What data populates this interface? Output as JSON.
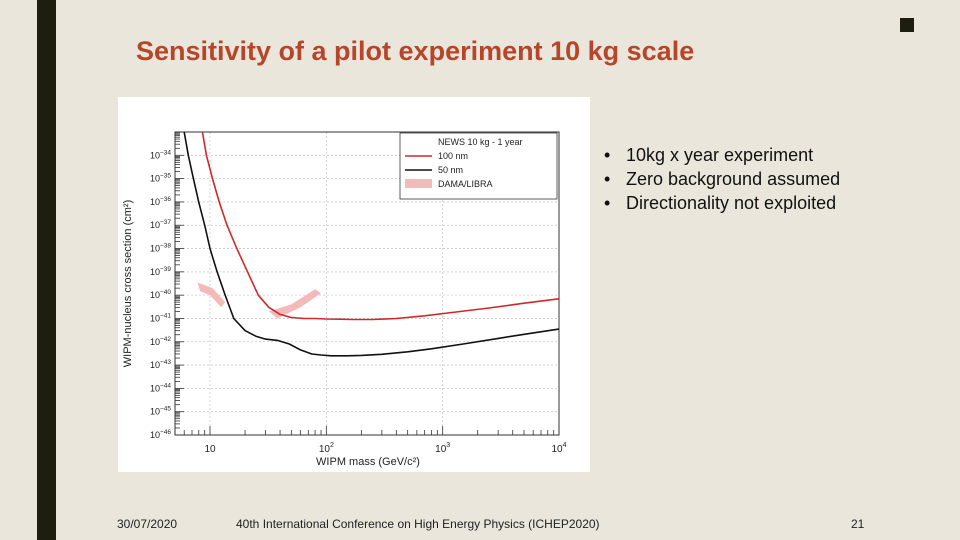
{
  "slide": {
    "title": "Sensitivity of a pilot experiment 10 kg scale",
    "bullets": [
      "10kg x year experiment",
      "Zero background assumed",
      "Directionality not exploited"
    ],
    "footer_date": "30/07/2020",
    "footer_conference": "40th International Conference on High Energy Physics (ICHEP2020)",
    "footer_page": "21",
    "accent_color": "#b5462a",
    "sidebar_color": "#1d1d10"
  },
  "chart_data": {
    "type": "line",
    "xlabel": "WIPM mass (GeV/c²)",
    "ylabel": "WIPM-nucleus cross section (cm²)",
    "x_scale": "log",
    "y_scale": "log",
    "xlim": [
      5,
      10000
    ],
    "ylim": [
      1e-46,
      1e-33
    ],
    "x_ticks": [
      {
        "value": 10,
        "base": "10",
        "exp": ""
      },
      {
        "value": 100,
        "base": "10",
        "exp": "2"
      },
      {
        "value": 1000,
        "base": "10",
        "exp": "3"
      },
      {
        "value": 10000,
        "base": "10",
        "exp": "4"
      }
    ],
    "y_ticks": [
      {
        "value": 1e-34,
        "base": "10",
        "exp": "−34"
      },
      {
        "value": 1e-35,
        "base": "10",
        "exp": "−35"
      },
      {
        "value": 1e-36,
        "base": "10",
        "exp": "−36"
      },
      {
        "value": 1e-37,
        "base": "10",
        "exp": "−37"
      },
      {
        "value": 1e-38,
        "base": "10",
        "exp": "−38"
      },
      {
        "value": 1e-39,
        "base": "10",
        "exp": "−39"
      },
      {
        "value": 1e-40,
        "base": "10",
        "exp": "−40"
      },
      {
        "value": 1e-41,
        "base": "10",
        "exp": "−41"
      },
      {
        "value": 1e-42,
        "base": "10",
        "exp": "−42"
      },
      {
        "value": 1e-43,
        "base": "10",
        "exp": "−43"
      },
      {
        "value": 1e-44,
        "base": "10",
        "exp": "−44"
      },
      {
        "value": 1e-45,
        "base": "10",
        "exp": "−45"
      },
      {
        "value": 1e-46,
        "base": "10",
        "exp": "−46"
      }
    ],
    "grid": true,
    "legend_position": "top-right",
    "legend_title": "NEWS 10 kg - 1 year",
    "series": [
      {
        "name": "100 nm",
        "color": "#cc2a2a",
        "x": [
          8.6,
          9.3,
          10.5,
          12,
          14,
          17,
          21,
          26,
          32,
          40,
          50,
          65,
          80,
          100,
          130,
          170,
          250,
          400,
          700,
          1200,
          2500,
          5000,
          10000
        ],
        "y": [
          1e-33,
          1e-34,
          1e-35,
          1e-36,
          1e-37,
          1e-38,
          1e-39,
          1e-40,
          3e-41,
          1.5e-41,
          1.1e-41,
          1e-41,
          1e-41,
          9.5e-42,
          9.3e-42,
          9e-42,
          9e-42,
          1e-41,
          1.3e-41,
          1.8e-41,
          2.8e-41,
          4.5e-41,
          7e-41
        ]
      },
      {
        "name": "50 nm",
        "color": "#111111",
        "x": [
          6,
          6.5,
          7.2,
          8,
          9,
          10,
          11.5,
          13.5,
          16,
          20,
          25,
          30,
          38,
          48,
          60,
          75,
          90,
          110,
          150,
          200,
          300,
          500,
          800,
          1500,
          3000,
          6000,
          10000
        ],
        "y": [
          1e-33,
          1e-34,
          1e-35,
          1e-36,
          1e-37,
          1e-38,
          1e-39,
          1e-40,
          1e-41,
          3e-42,
          1.7e-42,
          1.3e-42,
          1.15e-42,
          8e-43,
          4.5e-43,
          3e-43,
          2.7e-43,
          2.5e-43,
          2.5e-43,
          2.6e-43,
          2.9e-43,
          3.7e-43,
          5e-43,
          8e-43,
          1.4e-42,
          2.4e-42,
          3.5e-42
        ]
      }
    ],
    "regions": [
      {
        "name": "DAMA/LIBRA",
        "color": "#f4b9b9",
        "points": [
          [
            7.8,
            3.5e-40
          ],
          [
            10.5,
            2e-40
          ],
          [
            13.5,
            5e-41
          ],
          [
            12.5,
            3e-41
          ],
          [
            10,
            1e-40
          ],
          [
            8.2,
            1.5e-40
          ]
        ]
      },
      {
        "name": "DAMA/LIBRA",
        "color": "#f4b9b9",
        "points": [
          [
            32,
            2e-41
          ],
          [
            50,
            4e-41
          ],
          [
            80,
            1.8e-40
          ],
          [
            90,
            1.2e-40
          ],
          [
            60,
            3e-41
          ],
          [
            38,
            1e-41
          ]
        ]
      }
    ]
  }
}
